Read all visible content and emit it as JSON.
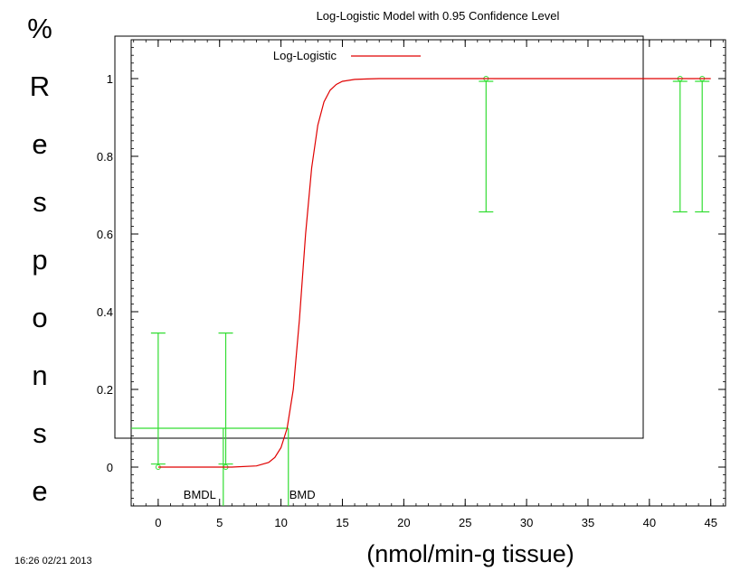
{
  "chart_data": {
    "type": "line",
    "title": "Log-Logistic Model with 0.95 Confidence Level",
    "xlabel": "(nmol/min-g tissue)",
    "ylabel": "% Response",
    "ylabel_chars": [
      "%",
      "R",
      "e",
      "s",
      "p",
      "o",
      "n",
      "s",
      "e"
    ],
    "xlim": [
      -2.2,
      46.2
    ],
    "ylim": [
      -0.1,
      1.1
    ],
    "x_ticks": [
      0,
      5,
      10,
      15,
      20,
      25,
      30,
      35,
      40,
      45
    ],
    "x_tick_labels": [
      "0",
      "5",
      "10",
      "15",
      "20",
      "25",
      "30",
      "35",
      "40",
      "45"
    ],
    "y_ticks": [
      0,
      0.2,
      0.4,
      0.6,
      0.8,
      1
    ],
    "y_tick_labels": [
      "0",
      "0.2",
      "0.4",
      "0.6",
      "0.8",
      "1"
    ],
    "legend": {
      "label": "Log-Logistic",
      "color": "#e00000",
      "placement": "top-left"
    },
    "model_curve": {
      "name": "Log-Logistic",
      "color": "#e00000",
      "x": [
        0,
        2,
        4,
        6,
        8,
        9,
        9.5,
        10,
        10.5,
        11,
        11.5,
        12,
        12.5,
        13,
        13.5,
        14,
        14.5,
        15,
        16,
        17,
        18,
        20,
        25,
        30,
        35,
        40,
        45
      ],
      "y": [
        0,
        0,
        0,
        0,
        0.003,
        0.012,
        0.025,
        0.05,
        0.1,
        0.2,
        0.38,
        0.6,
        0.77,
        0.88,
        0.94,
        0.97,
        0.985,
        0.993,
        0.998,
        0.999,
        1,
        1,
        1,
        1,
        1,
        1,
        1
      ]
    },
    "observations": {
      "color": "#33dd33",
      "points": [
        {
          "x": 0,
          "y": 0,
          "lower": 0.008,
          "upper": 0.345
        },
        {
          "x": 5.5,
          "y": 0,
          "lower": 0.008,
          "upper": 0.345
        },
        {
          "x": 26.7,
          "y": 1,
          "lower": 0.657,
          "upper": 0.993
        },
        {
          "x": 42.5,
          "y": 1,
          "lower": 0.657,
          "upper": 0.993
        },
        {
          "x": 44.3,
          "y": 1,
          "lower": 0.657,
          "upper": 0.993
        }
      ]
    },
    "bmr_level": 0.1,
    "bmd": {
      "label": "BMD",
      "x": 10.6
    },
    "bmdl": {
      "label": "BMDL",
      "x": 5.3
    },
    "timestamp": "16:26 02/21 2013"
  }
}
